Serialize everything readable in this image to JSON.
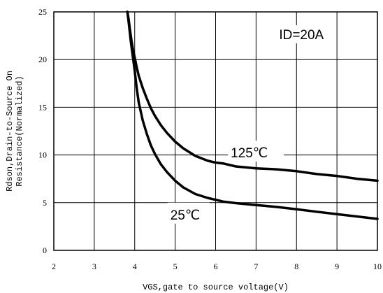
{
  "chart_data": {
    "type": "line",
    "title": "",
    "xlabel": "VGS,gate to source voltage(V)",
    "ylabel": [
      "Rdson,Drain-to-Source On",
      "Resistance(Normalized)"
    ],
    "xlim": [
      2,
      10
    ],
    "ylim": [
      0,
      25
    ],
    "xticks": [
      2,
      3,
      4,
      5,
      6,
      7,
      8,
      9,
      10
    ],
    "yticks": [
      0,
      5,
      10,
      15,
      20,
      25
    ],
    "grid": true,
    "legend": "none",
    "annotations": {
      "condition": "ID=20A",
      "series_125": "125℃",
      "series_25": "25℃"
    },
    "series": [
      {
        "name": "125℃",
        "x": [
          3.82,
          3.85,
          3.88,
          3.92,
          3.96,
          4.0,
          4.05,
          4.1,
          4.2,
          4.3,
          4.4,
          4.5,
          4.65,
          4.8,
          5.0,
          5.2,
          5.5,
          5.8,
          6.0,
          6.2,
          6.5,
          7.0,
          7.5,
          8.0,
          8.5,
          9.0,
          9.5,
          10.0
        ],
        "y": [
          25.0,
          24.2,
          23.2,
          22.0,
          21.0,
          20.2,
          19.2,
          18.3,
          17.0,
          15.9,
          14.9,
          14.1,
          13.1,
          12.3,
          11.4,
          10.7,
          9.9,
          9.4,
          9.2,
          9.1,
          8.8,
          8.6,
          8.5,
          8.3,
          8.0,
          7.8,
          7.5,
          7.3
        ]
      },
      {
        "name": "25℃",
        "x": [
          3.82,
          3.86,
          3.9,
          3.95,
          4.0,
          4.05,
          4.1,
          4.2,
          4.3,
          4.4,
          4.5,
          4.65,
          4.8,
          5.0,
          5.2,
          5.5,
          5.8,
          6.0,
          6.2,
          6.5,
          7.0,
          7.5,
          8.0,
          8.5,
          9.0,
          9.5,
          10.0
        ],
        "y": [
          25.0,
          23.6,
          22.0,
          20.4,
          18.8,
          17.0,
          15.5,
          13.6,
          12.2,
          11.0,
          10.1,
          9.0,
          8.2,
          7.3,
          6.6,
          5.9,
          5.5,
          5.3,
          5.1,
          4.95,
          4.75,
          4.55,
          4.3,
          4.05,
          3.8,
          3.55,
          3.3
        ]
      }
    ]
  }
}
